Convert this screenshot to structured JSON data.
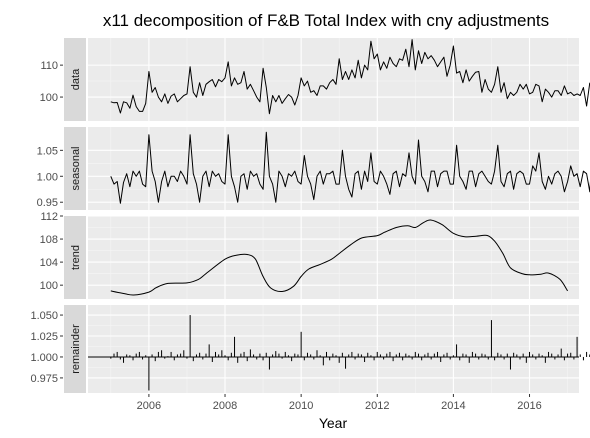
{
  "chart_data": {
    "type": "line",
    "title": "x11 decomposition of F&B Total Index with cny adjustments",
    "xlabel": "Year",
    "ylabel": "",
    "x_ticks": [
      2006,
      2008,
      2010,
      2012,
      2014,
      2016
    ],
    "x_range": [
      2004.4,
      2017.3
    ],
    "series_start": 2005.0,
    "series_step": 0.08333,
    "grid": true,
    "panels": [
      {
        "name": "data",
        "ylim": [
          92.5,
          118.5
        ],
        "y_ticks": [
          100,
          110
        ],
        "y_tick_labels": [
          "100",
          "110"
        ],
        "style": "line",
        "values": [
          98.5,
          98.2,
          98.3,
          95.0,
          98.5,
          98.2,
          96.5,
          100.6,
          97.0,
          95.5,
          95.5,
          98.0,
          108.0,
          101.5,
          103.0,
          100.0,
          98.5,
          101.0,
          98.0,
          100.3,
          101.0,
          98.5,
          99.5,
          100.5,
          101.0,
          109.5,
          101.5,
          100.0,
          104.5,
          100.5,
          104.0,
          104.8,
          105.5,
          103.2,
          105.5,
          104.8,
          106.0,
          111.0,
          103.5,
          106.0,
          104.0,
          104.5,
          108.0,
          102.5,
          104.0,
          102.0,
          100.0,
          98.5,
          109.0,
          103.0,
          94.8,
          100.5,
          98.5,
          100.5,
          98.0,
          99.5,
          100.8,
          100.0,
          97.5,
          100.5,
          106.0,
          103.5,
          105.0,
          101.5,
          102.0,
          100.5,
          103.5,
          103.5,
          102.5,
          104.5,
          105.5,
          104.0,
          112.0,
          105.5,
          108.0,
          105.5,
          108.5,
          106.0,
          111.5,
          106.0,
          110.0,
          108.5,
          117.5,
          112.0,
          113.5,
          108.5,
          111.0,
          109.0,
          112.5,
          110.5,
          109.5,
          112.0,
          111.5,
          115.0,
          109.5,
          118.0,
          108.5,
          114.5,
          110.5,
          114.0,
          112.0,
          113.0,
          111.5,
          109.5,
          111.0,
          112.5,
          106.5,
          110.0,
          116.0,
          107.5,
          108.0,
          104.5,
          108.5,
          105.0,
          106.5,
          107.8,
          108.0,
          101.5,
          105.5,
          102.5,
          101.5,
          104.0,
          109.5,
          101.5,
          104.5,
          99.5,
          101.5,
          100.5,
          101.5,
          104.0,
          102.5,
          104.0,
          101.0,
          101.5,
          104.0,
          103.5,
          98.5,
          102.5,
          101.5,
          100.0,
          102.0,
          102.0,
          100.5,
          103.5,
          101.0,
          101.5,
          100.5,
          101.0,
          100.5,
          103.0,
          97.2,
          104.5
        ]
      },
      {
        "name": "seasonal",
        "ylim": [
          0.935,
          1.095
        ],
        "y_ticks": [
          0.95,
          1.0,
          1.05
        ],
        "y_tick_labels": [
          "0.95",
          "1.00",
          "1.05"
        ],
        "style": "line",
        "values": [
          1.0,
          0.985,
          0.99,
          0.948,
          0.988,
          1.005,
          0.98,
          1.01,
          1.0,
          1.01,
          0.985,
          0.98,
          1.08,
          1.01,
          0.99,
          0.95,
          0.99,
          1.01,
          0.98,
          1.0,
          1.0,
          0.99,
          1.01,
          1.0,
          0.985,
          1.08,
          1.005,
          0.985,
          0.95,
          1.0,
          1.01,
          0.98,
          1.01,
          1.0,
          1.005,
          0.99,
          0.985,
          1.08,
          1.0,
          0.98,
          0.95,
          1.0,
          1.005,
          0.975,
          1.01,
          1.0,
          1.005,
          0.985,
          0.975,
          1.085,
          1.0,
          0.985,
          0.95,
          1.01,
          1.0,
          0.98,
          1.005,
          1.0,
          1.01,
          0.99,
          0.985,
          1.04,
          1.0,
          0.985,
          0.955,
          1.0,
          1.01,
          0.985,
          1.005,
          1.005,
          1.01,
          0.985,
          0.985,
          1.05,
          1.0,
          0.975,
          0.96,
          1.005,
          1.01,
          0.975,
          1.01,
          0.99,
          1.045,
          0.99,
          0.985,
          1.01,
          1.0,
          0.985,
          0.965,
          1.005,
          1.01,
          0.98,
          1.005,
          1.0,
          1.045,
          1.0,
          0.985,
          1.07,
          1.0,
          0.99,
          0.97,
          1.01,
          1.01,
          0.98,
          1.005,
          1.01,
          1.01,
          0.985,
          0.985,
          1.06,
          1.0,
          0.99,
          0.975,
          1.01,
          1.01,
          0.98,
          1.005,
          1.01,
          1.0,
          0.99,
          0.985,
          1.01,
          1.06,
          0.99,
          0.98,
          1.005,
          1.01,
          0.975,
          1.005,
          1.01,
          1.005,
          0.985,
          0.985,
          1.02,
          1.01,
          1.045,
          0.99,
          0.975,
          1.0,
          0.985,
          1.005,
          1.01,
          1.0,
          0.97,
          0.99,
          1.02,
          1.0,
          1.005,
          0.98,
          1.01,
          1.005,
          0.97,
          1.06
        ]
      },
      {
        "name": "trend",
        "ylim": [
          97.6,
          112.0
        ],
        "y_ticks": [
          100,
          104,
          108,
          112
        ],
        "y_tick_labels": [
          "100",
          "104",
          "108",
          "112"
        ],
        "style": "smooth",
        "points": [
          [
            2005.0,
            99.0
          ],
          [
            2005.3,
            98.6
          ],
          [
            2005.6,
            98.3
          ],
          [
            2006.0,
            98.8
          ],
          [
            2006.2,
            99.6
          ],
          [
            2006.5,
            100.3
          ],
          [
            2007.0,
            100.4
          ],
          [
            2007.3,
            101.0
          ],
          [
            2007.5,
            102.0
          ],
          [
            2008.0,
            104.5
          ],
          [
            2008.3,
            105.2
          ],
          [
            2008.6,
            105.3
          ],
          [
            2008.8,
            104.5
          ],
          [
            2009.0,
            101.5
          ],
          [
            2009.2,
            99.5
          ],
          [
            2009.5,
            98.9
          ],
          [
            2009.8,
            99.8
          ],
          [
            2010.0,
            101.5
          ],
          [
            2010.2,
            102.8
          ],
          [
            2010.5,
            103.6
          ],
          [
            2010.8,
            104.5
          ],
          [
            2011.0,
            105.5
          ],
          [
            2011.3,
            107.0
          ],
          [
            2011.6,
            108.2
          ],
          [
            2012.0,
            108.6
          ],
          [
            2012.2,
            109.2
          ],
          [
            2012.5,
            110.0
          ],
          [
            2012.8,
            110.3
          ],
          [
            2013.0,
            110.0
          ],
          [
            2013.2,
            110.8
          ],
          [
            2013.4,
            111.3
          ],
          [
            2013.7,
            110.5
          ],
          [
            2014.0,
            109.0
          ],
          [
            2014.3,
            108.4
          ],
          [
            2014.6,
            108.5
          ],
          [
            2014.9,
            108.6
          ],
          [
            2015.1,
            107.5
          ],
          [
            2015.3,
            105.5
          ],
          [
            2015.5,
            103.0
          ],
          [
            2015.8,
            102.0
          ],
          [
            2016.0,
            101.8
          ],
          [
            2016.3,
            101.9
          ],
          [
            2016.5,
            102.1
          ],
          [
            2016.8,
            101.0
          ],
          [
            2017.0,
            99.0
          ]
        ]
      },
      {
        "name": "remainder",
        "ylim": [
          0.957,
          1.062
        ],
        "y_ticks": [
          0.975,
          1.0,
          1.025,
          1.05
        ],
        "y_tick_labels": [
          "0.975",
          "1.000",
          "1.025",
          "1.050"
        ],
        "style": "spikes",
        "baseline": 1.0,
        "values": [
          0.998,
          1.004,
          1.006,
          0.997,
          0.993,
          1.003,
          1.002,
          0.996,
          1.004,
          1.006,
          0.997,
          1.002,
          0.96,
          1.003,
          0.995,
          1.006,
          1.008,
          0.998,
          1.001,
          1.006,
          0.996,
          1.003,
          1.004,
          1.008,
          0.998,
          1.05,
          0.995,
          1.003,
          1.005,
          0.997,
          1.004,
          1.015,
          0.994,
          1.006,
          1.003,
          1.008,
          1.002,
          0.996,
          1.005,
          1.024,
          0.993,
          1.004,
          1.006,
          0.995,
          1.009,
          1.003,
          0.997,
          1.004,
          0.996,
          1.005,
          0.985,
          1.003,
          1.007,
          1.004,
          0.998,
          1.006,
          1.002,
          0.995,
          1.004,
          1.003,
          1.03,
          0.996,
          1.005,
          1.003,
          0.997,
          1.008,
          1.002,
          0.99,
          1.006,
          0.996,
          1.004,
          1.002,
          0.993,
          1.005,
          0.986,
          1.003,
          1.006,
          0.997,
          1.004,
          1.003,
          0.994,
          1.005,
          1.002,
          0.996,
          1.006,
          1.003,
          0.997,
          1.004,
          1.006,
          0.995,
          1.003,
          1.005,
          0.996,
          1.004,
          1.002,
          0.997,
          1.006,
          1.004,
          0.996,
          1.003,
          1.005,
          0.997,
          1.004,
          1.006,
          0.994,
          1.003,
          1.005,
          0.997,
          1.002,
          1.015,
          0.996,
          1.004,
          1.003,
          0.993,
          1.006,
          1.004,
          0.997,
          1.004,
          1.003,
          0.997,
          1.044,
          0.996,
          1.005,
          1.003,
          0.997,
          1.004,
          0.985,
          1.005,
          1.003,
          0.997,
          1.004,
          0.993,
          1.006,
          1.003,
          0.997,
          1.004,
          1.002,
          0.993,
          1.006,
          1.004,
          0.997,
          1.003,
          1.01,
          0.996,
          1.004,
          1.005,
          0.997,
          1.024,
          1.003,
          0.996,
          1.006,
          1.003,
          0.995,
          0.998
        ]
      }
    ]
  }
}
